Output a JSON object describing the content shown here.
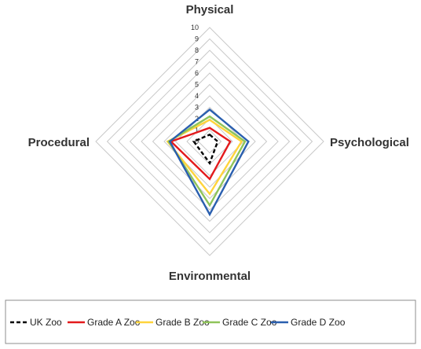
{
  "chart_data": {
    "type": "radar",
    "axes": [
      "Physical",
      "Psychological",
      "Environmental",
      "Procedural"
    ],
    "range": [
      0,
      10
    ],
    "ticks": [
      "10",
      "9",
      "8",
      "7",
      "6",
      "5",
      "4",
      "3",
      "2",
      "1",
      "0"
    ],
    "grid": true,
    "legend_position": "bottom",
    "series": [
      {
        "name": "UK Zoo",
        "values": [
          0.6,
          0.7,
          1.9,
          1.4
        ],
        "color": "#000000",
        "dash": "dashed"
      },
      {
        "name": "Grade A Zoo",
        "values": [
          1.2,
          1.8,
          3.3,
          3.4
        ],
        "color": "#e31a1c",
        "dash": "solid"
      },
      {
        "name": "Grade B Zoo",
        "values": [
          1.9,
          2.8,
          4.6,
          3.7
        ],
        "color": "#ffd43b",
        "dash": "solid"
      },
      {
        "name": "Grade C Zoo",
        "values": [
          2.2,
          3.1,
          5.6,
          3.6
        ],
        "color": "#8fc45a",
        "dash": "solid"
      },
      {
        "name": "Grade D Zoo",
        "values": [
          2.8,
          3.4,
          6.4,
          3.5
        ],
        "color": "#2a5faf",
        "dash": "solid"
      }
    ]
  }
}
